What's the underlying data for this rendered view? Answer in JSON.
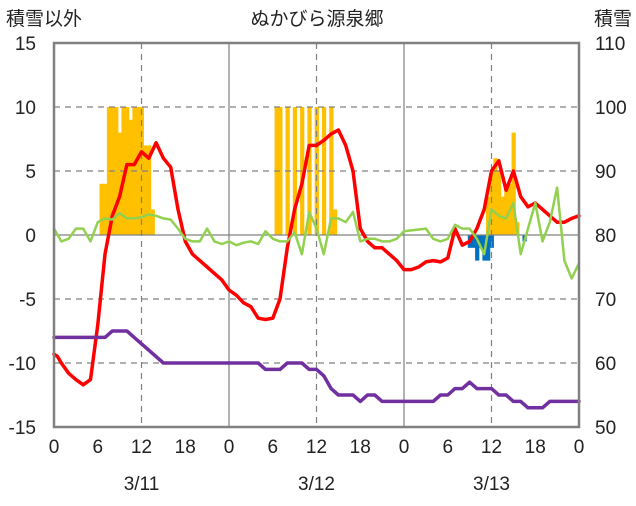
{
  "chart_data": {
    "type": "bar+line",
    "title": "ぬかびら源泉郷",
    "left_axis_label": "積雪以外",
    "right_axis_label": "積雪",
    "left_ylim": [
      -15,
      15
    ],
    "left_yticks": [
      "15",
      "10",
      "5",
      "0",
      "-5",
      "-10",
      "-15"
    ],
    "right_ylim": [
      50,
      110
    ],
    "right_yticks": [
      "110",
      "100",
      "90",
      "80",
      "70",
      "60",
      "50"
    ],
    "x_range_hours": [
      0,
      72
    ],
    "hour_tick_labels": [
      "0",
      "6",
      "12",
      "18",
      "0",
      "6",
      "12",
      "18",
      "0",
      "6",
      "12",
      "18",
      "0"
    ],
    "date_labels": [
      "3/11",
      "3/12",
      "3/13"
    ],
    "colors": {
      "snowfall": "#ffc000",
      "precip_blue": "#0070c0",
      "temperature": "#ff0000",
      "wind": "#92d050",
      "snow_depth": "#7030a0",
      "frame": "#808080",
      "grid": "#808080"
    },
    "series": [
      {
        "name": "snowfall",
        "kind": "bar",
        "axis": "left",
        "color": "#ffc000",
        "points": [
          [
            6.5,
            4
          ],
          [
            7,
            4
          ],
          [
            7.5,
            10
          ],
          [
            8,
            10
          ],
          [
            8.5,
            10
          ],
          [
            9,
            8
          ],
          [
            9.5,
            10
          ],
          [
            10,
            10
          ],
          [
            10.5,
            9
          ],
          [
            11,
            10
          ],
          [
            11.5,
            10
          ],
          [
            12,
            10
          ],
          [
            12.5,
            7
          ],
          [
            13,
            7
          ],
          [
            13.5,
            2
          ],
          [
            30.5,
            10
          ],
          [
            31,
            10
          ],
          [
            32,
            10
          ],
          [
            33,
            10
          ],
          [
            34,
            10
          ],
          [
            35,
            10
          ],
          [
            36,
            10
          ],
          [
            37,
            10
          ],
          [
            38,
            10
          ],
          [
            38.5,
            2
          ],
          [
            59.5,
            3
          ],
          [
            60,
            5
          ],
          [
            60.5,
            6
          ],
          [
            61,
            5
          ],
          [
            61.5,
            3
          ],
          [
            62,
            4
          ],
          [
            62.5,
            4
          ],
          [
            63,
            8
          ],
          [
            63.5,
            1
          ]
        ]
      },
      {
        "name": "precipitation",
        "kind": "bar",
        "axis": "left",
        "color": "#0070c0",
        "points": [
          [
            57,
            -1
          ],
          [
            57.5,
            -1
          ],
          [
            58,
            -2
          ],
          [
            58.5,
            -1
          ],
          [
            59,
            -2
          ],
          [
            59.5,
            -2
          ],
          [
            60,
            -1
          ],
          [
            64.5,
            -0.5
          ]
        ]
      },
      {
        "name": "temperature",
        "kind": "line",
        "axis": "left",
        "color": "#ff0000",
        "points": [
          [
            0,
            -9.3
          ],
          [
            0.5,
            -9.5
          ],
          [
            1,
            -10
          ],
          [
            2,
            -10.8
          ],
          [
            3,
            -11.3
          ],
          [
            4,
            -11.7
          ],
          [
            5,
            -11.3
          ],
          [
            6,
            -7
          ],
          [
            7,
            -1.5
          ],
          [
            8,
            1.5
          ],
          [
            9,
            3
          ],
          [
            10,
            5.5
          ],
          [
            11,
            5.5
          ],
          [
            12,
            6.5
          ],
          [
            13,
            6
          ],
          [
            14,
            7.2
          ],
          [
            15,
            6
          ],
          [
            16,
            5.3
          ],
          [
            17,
            2
          ],
          [
            18,
            -0.5
          ],
          [
            19,
            -1.5
          ],
          [
            20,
            -2
          ],
          [
            21,
            -2.5
          ],
          [
            22,
            -3
          ],
          [
            23,
            -3.5
          ],
          [
            24,
            -4.3
          ],
          [
            25,
            -4.7
          ],
          [
            26,
            -5.3
          ],
          [
            27,
            -5.6
          ],
          [
            28,
            -6.5
          ],
          [
            29,
            -6.6
          ],
          [
            30,
            -6.5
          ],
          [
            31,
            -5
          ],
          [
            32,
            -1
          ],
          [
            33,
            2
          ],
          [
            34,
            4
          ],
          [
            35,
            7
          ],
          [
            36,
            7
          ],
          [
            37,
            7.4
          ],
          [
            38,
            7.9
          ],
          [
            39,
            8.2
          ],
          [
            40,
            7
          ],
          [
            41,
            5
          ],
          [
            42,
            0.5
          ],
          [
            43,
            -0.5
          ],
          [
            44,
            -1
          ],
          [
            45,
            -1
          ],
          [
            46,
            -1.5
          ],
          [
            47,
            -2
          ],
          [
            48,
            -2.7
          ],
          [
            49,
            -2.7
          ],
          [
            50,
            -2.5
          ],
          [
            51,
            -2.1
          ],
          [
            52,
            -2
          ],
          [
            53,
            -2.1
          ],
          [
            54,
            -1.8
          ],
          [
            55,
            0.5
          ],
          [
            56,
            -0.8
          ],
          [
            57,
            -0.5
          ],
          [
            58,
            0.5
          ],
          [
            59,
            2
          ],
          [
            60,
            5
          ],
          [
            61,
            5.8
          ],
          [
            62,
            3.5
          ],
          [
            63,
            5
          ],
          [
            64,
            3
          ],
          [
            65,
            2.2
          ],
          [
            66,
            2.5
          ],
          [
            67,
            2
          ],
          [
            68,
            1.5
          ],
          [
            69,
            1
          ],
          [
            70,
            1
          ],
          [
            71,
            1.3
          ],
          [
            72,
            1.5
          ]
        ]
      },
      {
        "name": "wind",
        "kind": "line",
        "axis": "left",
        "color": "#92d050",
        "points": [
          [
            0,
            0.5
          ],
          [
            1,
            -0.5
          ],
          [
            2,
            -0.3
          ],
          [
            3,
            0.5
          ],
          [
            4,
            0.5
          ],
          [
            5,
            -0.5
          ],
          [
            6,
            1
          ],
          [
            7,
            1.3
          ],
          [
            8,
            1.2
          ],
          [
            9,
            1.7
          ],
          [
            10,
            1.3
          ],
          [
            11,
            1.3
          ],
          [
            12,
            1.4
          ],
          [
            13,
            1.6
          ],
          [
            14,
            1.5
          ],
          [
            15,
            1.3
          ],
          [
            16,
            1.2
          ],
          [
            17,
            0.5
          ],
          [
            18,
            -0.3
          ],
          [
            19,
            -0.5
          ],
          [
            20,
            -0.5
          ],
          [
            21,
            0.5
          ],
          [
            22,
            -0.5
          ],
          [
            23,
            -0.7
          ],
          [
            24,
            -0.5
          ],
          [
            25,
            -0.8
          ],
          [
            26,
            -0.6
          ],
          [
            27,
            -0.5
          ],
          [
            28,
            -0.7
          ],
          [
            29,
            0.3
          ],
          [
            30,
            -0.3
          ],
          [
            31,
            -0.5
          ],
          [
            32,
            -0.5
          ],
          [
            33,
            0.2
          ],
          [
            34,
            -1.5
          ],
          [
            35,
            1.8
          ],
          [
            36,
            0.5
          ],
          [
            37,
            -1.5
          ],
          [
            38,
            1.3
          ],
          [
            39,
            1.3
          ],
          [
            40,
            1
          ],
          [
            41,
            1.8
          ],
          [
            42,
            -0.5
          ],
          [
            43,
            -0.3
          ],
          [
            44,
            -0.3
          ],
          [
            45,
            -0.5
          ],
          [
            46,
            -0.5
          ],
          [
            47,
            -0.3
          ],
          [
            48,
            0.3
          ],
          [
            51,
            0.5
          ],
          [
            52,
            -0.3
          ],
          [
            53,
            -0.5
          ],
          [
            54,
            -0.3
          ],
          [
            55,
            0.8
          ],
          [
            56,
            0.5
          ],
          [
            57,
            0.5
          ],
          [
            58,
            -0.3
          ],
          [
            59,
            -1.5
          ],
          [
            60,
            2
          ],
          [
            61,
            1.5
          ],
          [
            62,
            1.3
          ],
          [
            63,
            2.5
          ],
          [
            64,
            -1.5
          ],
          [
            65,
            0.5
          ],
          [
            66,
            2.5
          ],
          [
            67,
            -0.5
          ],
          [
            68,
            1
          ],
          [
            69,
            3.7
          ],
          [
            70,
            -2
          ],
          [
            71,
            -3.4
          ],
          [
            72,
            -2.2
          ]
        ]
      },
      {
        "name": "snow_depth",
        "kind": "line",
        "axis": "right",
        "color": "#7030a0",
        "points": [
          [
            0,
            64
          ],
          [
            4,
            64
          ],
          [
            6,
            64
          ],
          [
            7,
            64
          ],
          [
            8,
            65
          ],
          [
            10,
            65
          ],
          [
            11,
            64
          ],
          [
            12,
            63
          ],
          [
            13,
            62
          ],
          [
            15,
            60
          ],
          [
            28,
            60
          ],
          [
            29,
            59
          ],
          [
            31,
            59
          ],
          [
            32,
            60
          ],
          [
            34,
            60
          ],
          [
            35,
            59
          ],
          [
            36,
            59
          ],
          [
            37,
            58
          ],
          [
            38,
            56
          ],
          [
            39,
            55
          ],
          [
            41,
            55
          ],
          [
            42,
            54
          ],
          [
            43,
            55
          ],
          [
            44,
            55
          ],
          [
            45,
            54
          ],
          [
            50,
            54
          ],
          [
            51,
            54
          ],
          [
            52,
            54
          ],
          [
            53,
            55
          ],
          [
            54,
            55
          ],
          [
            55,
            56
          ],
          [
            56,
            56
          ],
          [
            57,
            57
          ],
          [
            58,
            56
          ],
          [
            60,
            56
          ],
          [
            61,
            55
          ],
          [
            62,
            55
          ],
          [
            63,
            54
          ],
          [
            64,
            54
          ],
          [
            65,
            53
          ],
          [
            67,
            53
          ],
          [
            68,
            54
          ],
          [
            72,
            54
          ]
        ]
      }
    ]
  }
}
